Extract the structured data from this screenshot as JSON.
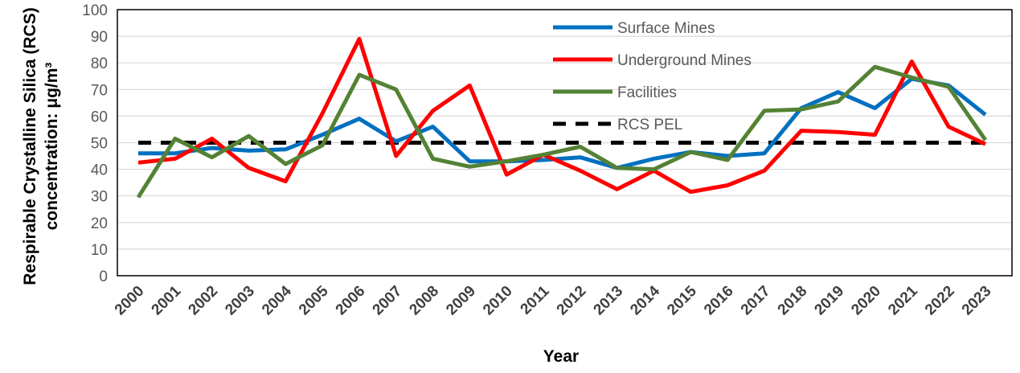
{
  "chart_data": {
    "type": "line",
    "title": "",
    "xlabel": "Year",
    "ylabel_line1": "Respirable Crystalline Silica (RCS)",
    "ylabel_line2": "concentration: μg/m³",
    "ylim": [
      0,
      100
    ],
    "yticks": [
      0,
      10,
      20,
      30,
      40,
      50,
      60,
      70,
      80,
      90,
      100
    ],
    "grid": true,
    "legend_position": "top-right",
    "categories": [
      "2000",
      "2001",
      "2002",
      "2003",
      "2004",
      "2005",
      "2006",
      "2007",
      "2008",
      "2009",
      "2010",
      "2011",
      "2012",
      "2013",
      "2014",
      "2015",
      "2016",
      "2017",
      "2018",
      "2019",
      "2020",
      "2021",
      "2022",
      "2023"
    ],
    "series": [
      {
        "name": "Surface Mines",
        "color": "#0070C0",
        "style": "solid",
        "values": [
          46,
          46,
          48,
          47,
          47.5,
          53,
          59,
          50.5,
          56,
          43,
          43,
          43.5,
          44.5,
          40.5,
          44,
          46.5,
          45,
          46,
          63,
          69,
          63,
          74,
          71.5,
          60.5
        ]
      },
      {
        "name": "Underground Mines",
        "color": "#FF0000",
        "style": "solid",
        "values": [
          42.5,
          44,
          51.5,
          40.5,
          35.5,
          61,
          89,
          45,
          62,
          71.5,
          38,
          45.5,
          39.5,
          32.5,
          39.5,
          31.5,
          34,
          39.5,
          54.5,
          54,
          53,
          80.5,
          56,
          49.5
        ]
      },
      {
        "name": "Facilities",
        "color": "#548235",
        "style": "solid",
        "values": [
          29.5,
          51.5,
          44.5,
          52.5,
          42,
          49,
          75.5,
          70,
          44,
          41,
          43,
          45.5,
          48.5,
          40.5,
          40,
          46.5,
          43.5,
          62,
          62.5,
          65.5,
          78.5,
          74.5,
          71,
          51
        ]
      },
      {
        "name": "RCS PEL",
        "color": "#000000",
        "style": "dashed",
        "values": [
          50,
          50,
          50,
          50,
          50,
          50,
          50,
          50,
          50,
          50,
          50,
          50,
          50,
          50,
          50,
          50,
          50,
          50,
          50,
          50,
          50,
          50,
          50,
          50
        ]
      }
    ]
  }
}
